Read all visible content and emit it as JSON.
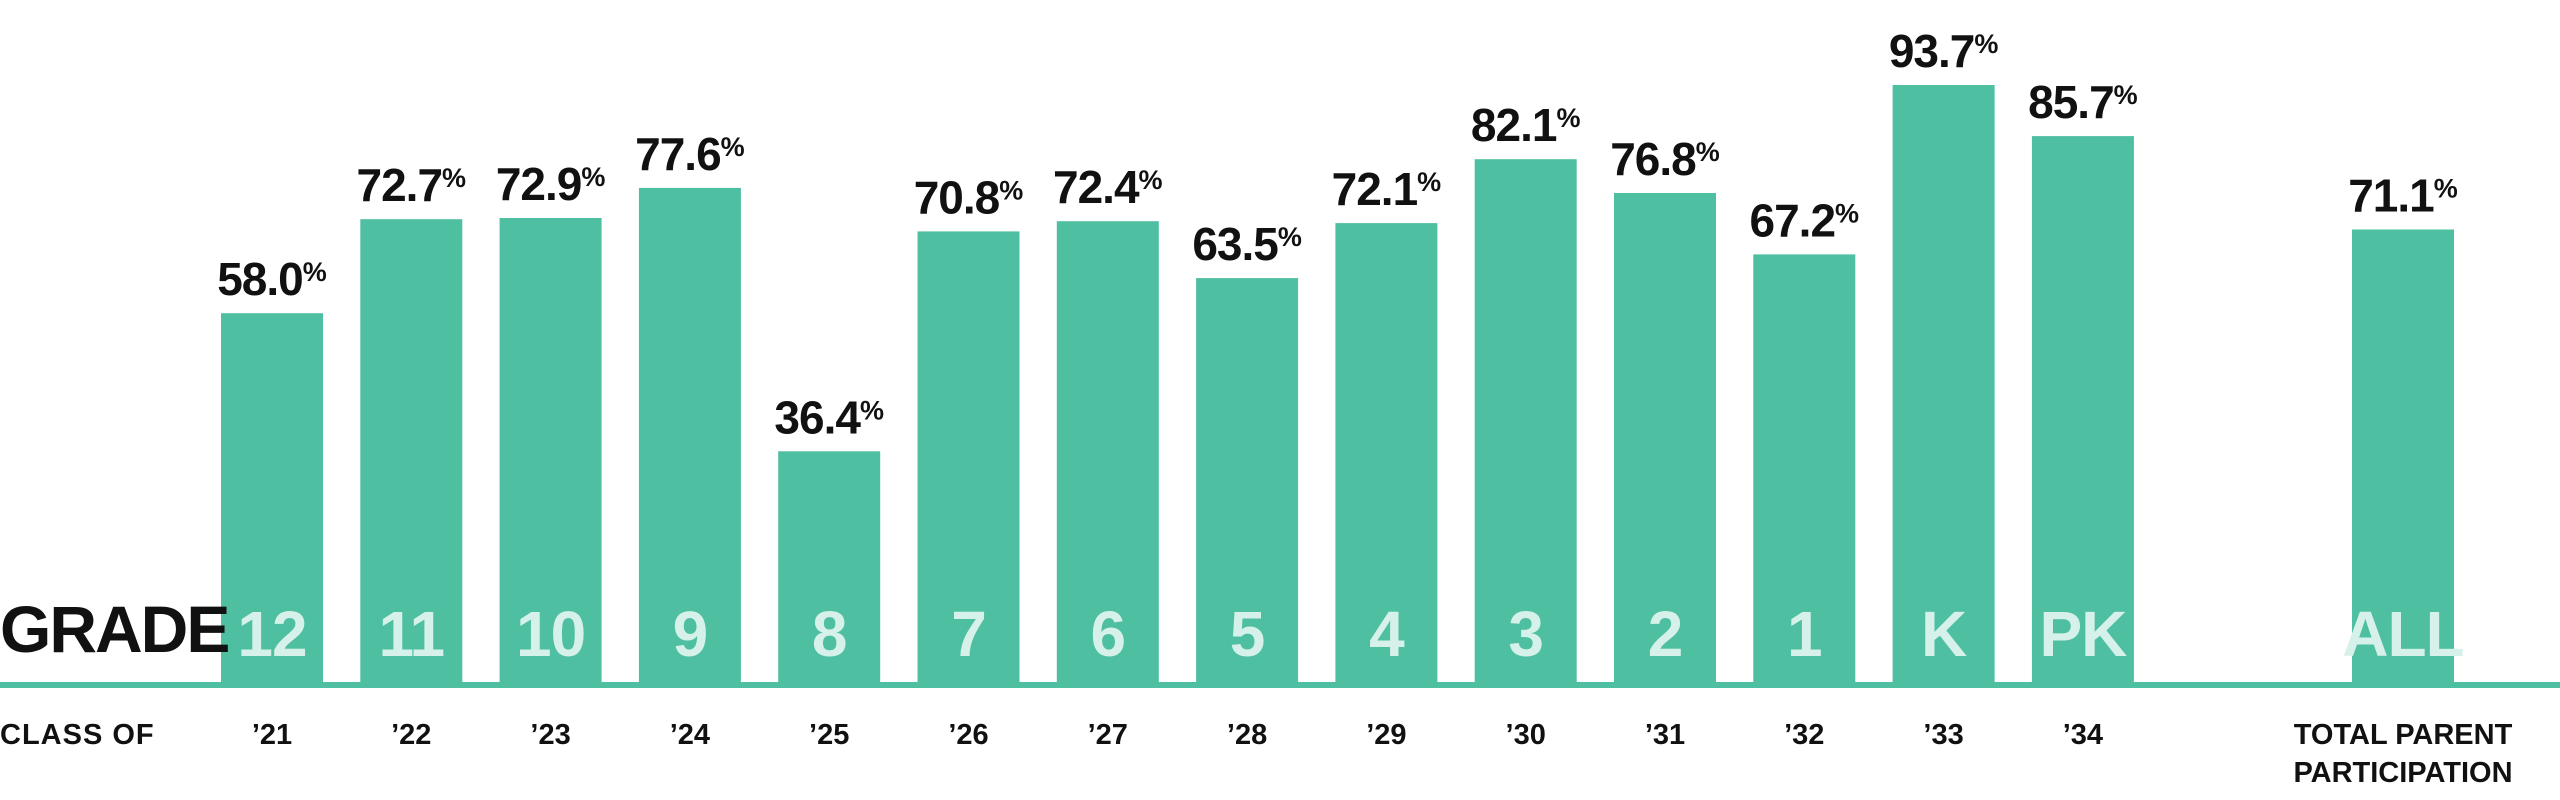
{
  "chart_data": {
    "type": "bar",
    "row_labels": {
      "grade": "GRADE",
      "class": "CLASS OF"
    },
    "unit": "%",
    "bars": [
      {
        "grade": "12",
        "class": "’21",
        "value": 58.0
      },
      {
        "grade": "11",
        "class": "’22",
        "value": 72.7
      },
      {
        "grade": "10",
        "class": "’23",
        "value": 72.9
      },
      {
        "grade": "9",
        "class": "’24",
        "value": 77.6
      },
      {
        "grade": "8",
        "class": "’25",
        "value": 36.4
      },
      {
        "grade": "7",
        "class": "’26",
        "value": 70.8
      },
      {
        "grade": "6",
        "class": "’27",
        "value": 72.4
      },
      {
        "grade": "5",
        "class": "’28",
        "value": 63.5
      },
      {
        "grade": "4",
        "class": "’29",
        "value": 72.1
      },
      {
        "grade": "3",
        "class": "’30",
        "value": 82.1
      },
      {
        "grade": "2",
        "class": "’31",
        "value": 76.8
      },
      {
        "grade": "1",
        "class": "’32",
        "value": 67.2
      },
      {
        "grade": "K",
        "class": "’33",
        "value": 93.7
      },
      {
        "grade": "PK",
        "class": "’34",
        "value": 85.7
      }
    ],
    "total": {
      "grade": "ALL",
      "class_lines": [
        "TOTAL PARENT",
        "PARTICIPATION"
      ],
      "value": 71.1
    },
    "ylim": [
      0,
      100
    ],
    "colors": {
      "bar": "#4fbfa2",
      "baseline": "#4fbfa2",
      "grade_text": "#d6f1ea",
      "value_text": "#111111"
    }
  }
}
